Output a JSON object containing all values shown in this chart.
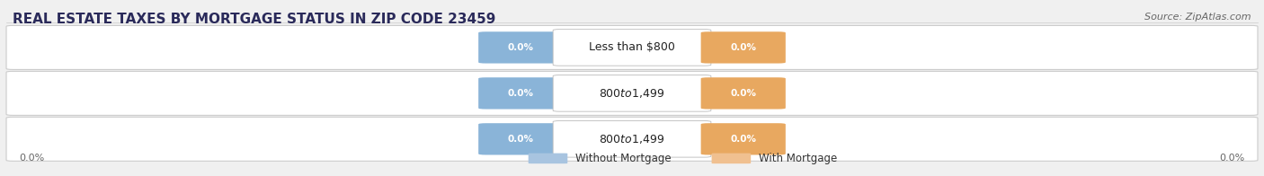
{
  "title": "REAL ESTATE TAXES BY MORTGAGE STATUS IN ZIP CODE 23459",
  "source_text": "Source: ZipAtlas.com",
  "categories": [
    "Less than $800",
    "$800 to $1,499",
    "$800 to $1,499"
  ],
  "without_mortgage": [
    0.0,
    0.0,
    0.0
  ],
  "with_mortgage": [
    0.0,
    0.0,
    0.0
  ],
  "bar_color_without": "#a8c4e0",
  "bar_color_with": "#f0c090",
  "label_color_without": "#8ab4d8",
  "label_color_with": "#e8a860",
  "bg_color": "#f0f0f0",
  "bar_bg_left": "#e8e8e8",
  "bar_bg_right": "#f2f2f2",
  "axis_label_left": "0.0%",
  "axis_label_right": "0.0%",
  "legend_without": "Without Mortgage",
  "legend_with": "With Mortgage",
  "title_fontsize": 11,
  "source_fontsize": 8,
  "label_fontsize": 7.5,
  "cat_fontsize": 9
}
